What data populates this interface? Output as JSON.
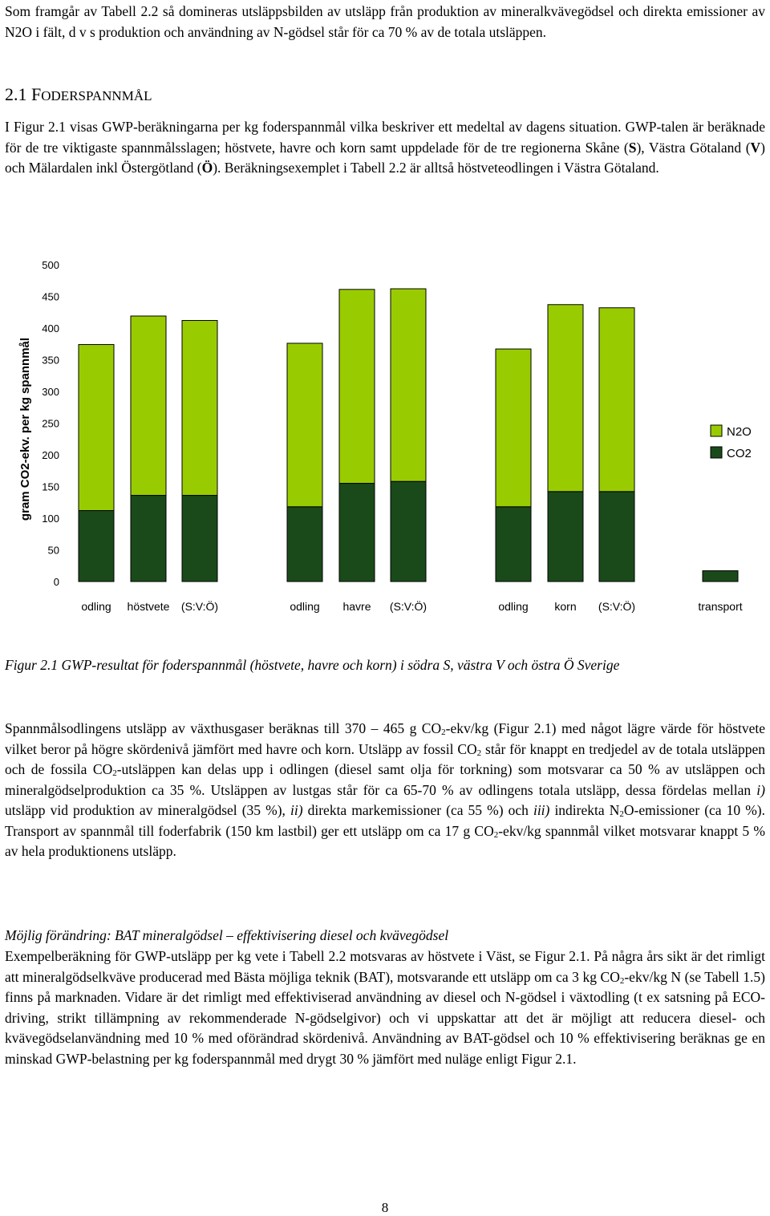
{
  "p_intro": "Som framgår av Tabell 2.2 så domineras utsläppsbilden av utsläpp från produktion av mineralkvävegödsel och direkta emissioner av N2O i fält, d v s produktion och användning av N-gödsel står för ca 70 % av de totala utsläppen.",
  "section": {
    "num": "2.1 ",
    "first": "F",
    "rest": "ODERSPANNMÅL"
  },
  "p1": {
    "a": "I Figur 2.1 visas GWP-beräkningarna per kg foderspannmål vilka beskriver ett medeltal av dagens situation. GWP-talen är beräknade för de tre viktigaste spannmålsslagen; höstvete, havre och korn samt uppdelade för de tre regionerna Skåne (",
    "s": "S",
    "b": "), Västra Götaland (",
    "v": "V",
    "c": ") och Mälardalen inkl Östergötland (",
    "o": "Ö",
    "d": "). Beräkningsexemplet i Tabell 2.2 är alltså höstveteodlingen i Västra Götaland."
  },
  "chart_data": {
    "type": "bar",
    "stacked": true,
    "ylabel": "gram CO2-ekv. per kg spannmål",
    "ylim": [
      0,
      500
    ],
    "yticks": [
      "0",
      "50",
      "100",
      "150",
      "200",
      "250",
      "300",
      "350",
      "400",
      "450",
      "500"
    ],
    "categories": [
      "S",
      "V",
      "Ö",
      "S",
      "V",
      "Ö",
      "S",
      "V",
      "Ö",
      "transport"
    ],
    "group_labels": [
      {
        "label": "odling",
        "after": 0
      },
      {
        "label": "höstvete",
        "after": 1
      },
      {
        "label": "(S:V:Ö)",
        "after": 2
      },
      {
        "label": "odling",
        "after": 3
      },
      {
        "label": "havre",
        "after": 4
      },
      {
        "label": "(S:V:Ö)",
        "after": 5
      },
      {
        "label": "odling",
        "after": 6
      },
      {
        "label": "korn",
        "after": 7
      },
      {
        "label": "(S:V:Ö)",
        "after": 8
      },
      {
        "label": "transport",
        "after": 9
      }
    ],
    "series": [
      {
        "name": "CO2",
        "color": "#1a4a1a",
        "values": [
          112,
          136,
          136,
          118,
          155,
          158,
          118,
          142,
          142,
          17
        ]
      },
      {
        "name": "N2O",
        "color": "#99cc00",
        "values": [
          262,
          283,
          276,
          258,
          306,
          304,
          249,
          295,
          290,
          0
        ]
      }
    ],
    "legend": "right",
    "grid": false
  },
  "caption": "Figur 2.1 GWP-resultat för foderspannmål (höstvete, havre och korn) i södra S, västra V och östra Ö Sverige",
  "p2": {
    "a": "Spannmålsodlingens utsläpp av växthusgaser beräknas till 370 – 465 g CO",
    "a2": "2",
    "a3": "-ekv/kg (Figur 2.1) med något lägre värde för höstvete vilket beror på högre skördenivå jämfört med havre och korn. Utsläpp av fossil CO",
    "b2": "2",
    "b3": " står för knappt en tredjedel av de totala utsläppen och de fossila CO",
    "c2": "2",
    "c3": "-utsläppen kan delas upp i odlingen (diesel samt olja för torkning) som motsvarar ca 50 % av utsläppen och mineralgödselproduktion ca 35 %. Utsläppen av lustgas står för ca 65-70 % av odlingens totala utsläpp, dessa fördelas mellan ",
    "i1": "i)",
    "d": " utsläpp vid produktion av mineralgödsel (35 %), ",
    "i2": "ii)",
    "e": " direkta markemissioner (ca 55 %) och ",
    "i3": "iii)",
    "f": " indirekta N",
    "f2": "2",
    "f3": "O-emissioner (ca 10 %). Transport av spannmål till foderfabrik (150 km lastbil) ger ett utsläpp om ca 17 g CO",
    "g2": "2",
    "g3": "-ekv/kg spannmål vilket motsvarar knappt 5 % av hela produktionens utsläpp."
  },
  "p3_title": "Möjlig förändring: BAT mineralgödsel – effektivisering diesel och kvävegödsel",
  "p3": {
    "a": "Exempelberäkning för GWP-utsläpp per kg vete i Tabell 2.2 motsvaras av höstvete i Väst, se Figur 2.1. På några års sikt är det rimligt att mineralgödselkväve producerad med Bästa möjliga teknik (BAT), motsvarande ett utsläpp om ca 3 kg CO",
    "a2": "2",
    "a3": "-ekv/kg N (se Tabell 1.5) finns på marknaden. Vidare är det rimligt med effektiviserad användning av diesel och N-gödsel i växtodling (t ex satsning på ECO-driving, strikt tillämpning av rekommenderade N-gödselgivor) och vi uppskattar att det är möjligt att reducera diesel- och kvävegödselanvändning med 10 % med oförändrad skördenivå. Användning av BAT-gödsel och 10 % effektivisering beräknas ge en minskad GWP-belastning per kg foderspannmål med drygt 30 % jämfört med nuläge enligt Figur 2.1."
  },
  "page_number": "8"
}
